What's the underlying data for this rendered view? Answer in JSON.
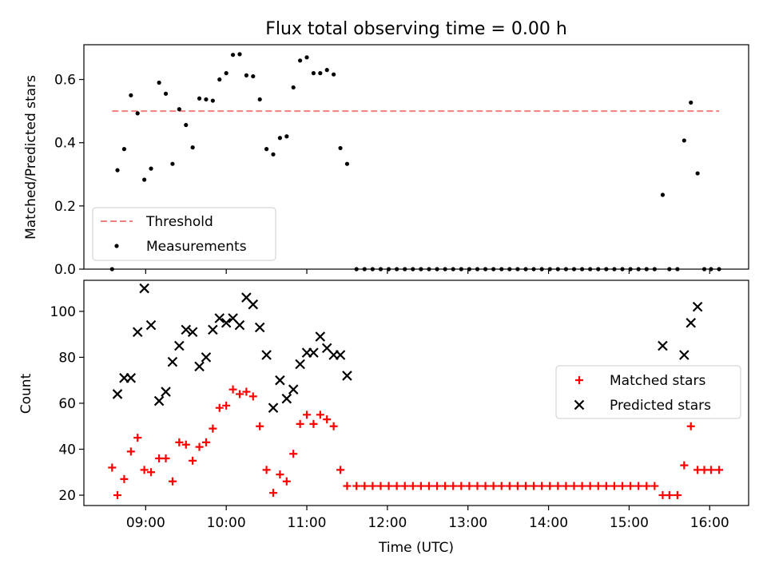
{
  "chart_data": [
    {
      "type": "scatter",
      "title": "Flux total observing time = 0.00 h",
      "xlabel": "",
      "ylabel": "Matched/Predicted stars",
      "ylim": [
        0.0,
        0.71
      ],
      "yticks": [
        "0.0",
        "0.2",
        "0.4",
        "0.6"
      ],
      "xlim": [
        "08:14",
        "16:29"
      ],
      "legend": {
        "position": "lower-left",
        "entries": [
          "Threshold",
          "Measurements"
        ]
      },
      "threshold": {
        "name": "Threshold",
        "value": 0.5,
        "x": [
          "08:35",
          "16:07"
        ],
        "color": "#f08080",
        "style": "dashed"
      },
      "series": [
        {
          "name": "Measurements",
          "color": "#000000",
          "marker": "dot",
          "points": [
            [
              "08:35",
              0.0
            ],
            [
              "08:39",
              0.313
            ],
            [
              "08:44",
              0.38
            ],
            [
              "08:49",
              0.55
            ],
            [
              "08:54",
              0.493
            ],
            [
              "08:59",
              0.283
            ],
            [
              "09:04",
              0.318
            ],
            [
              "09:10",
              0.59
            ],
            [
              "09:15",
              0.555
            ],
            [
              "09:20",
              0.333
            ],
            [
              "09:25",
              0.506
            ],
            [
              "09:30",
              0.456
            ],
            [
              "09:35",
              0.385
            ],
            [
              "09:40",
              0.54
            ],
            [
              "09:45",
              0.537
            ],
            [
              "09:50",
              0.533
            ],
            [
              "09:55",
              0.6
            ],
            [
              "10:00",
              0.62
            ],
            [
              "10:05",
              0.678
            ],
            [
              "10:10",
              0.68
            ],
            [
              "10:15",
              0.613
            ],
            [
              "10:20",
              0.61
            ],
            [
              "10:25",
              0.537
            ],
            [
              "10:30",
              0.38
            ],
            [
              "10:35",
              0.363
            ],
            [
              "10:40",
              0.415
            ],
            [
              "10:45",
              0.42
            ],
            [
              "10:50",
              0.575
            ],
            [
              "10:55",
              0.66
            ],
            [
              "11:00",
              0.67
            ],
            [
              "11:05",
              0.62
            ],
            [
              "11:10",
              0.62
            ],
            [
              "11:15",
              0.63
            ],
            [
              "11:20",
              0.616
            ],
            [
              "11:25",
              0.383
            ],
            [
              "11:30",
              0.333
            ],
            [
              "11:37",
              0.0
            ],
            [
              "11:43",
              0.0
            ],
            [
              "11:49",
              0.0
            ],
            [
              "11:55",
              0.0
            ],
            [
              "12:01",
              0.0
            ],
            [
              "12:07",
              0.0
            ],
            [
              "12:13",
              0.0
            ],
            [
              "12:19",
              0.0
            ],
            [
              "12:25",
              0.0
            ],
            [
              "12:31",
              0.0
            ],
            [
              "12:37",
              0.0
            ],
            [
              "12:43",
              0.0
            ],
            [
              "12:49",
              0.0
            ],
            [
              "12:55",
              0.0
            ],
            [
              "13:01",
              0.0
            ],
            [
              "13:07",
              0.0
            ],
            [
              "13:13",
              0.0
            ],
            [
              "13:19",
              0.0
            ],
            [
              "13:25",
              0.0
            ],
            [
              "13:31",
              0.0
            ],
            [
              "13:37",
              0.0
            ],
            [
              "13:43",
              0.0
            ],
            [
              "13:49",
              0.0
            ],
            [
              "13:55",
              0.0
            ],
            [
              "14:01",
              0.0
            ],
            [
              "14:07",
              0.0
            ],
            [
              "14:13",
              0.0
            ],
            [
              "14:19",
              0.0
            ],
            [
              "14:25",
              0.0
            ],
            [
              "14:31",
              0.0
            ],
            [
              "14:37",
              0.0
            ],
            [
              "14:43",
              0.0
            ],
            [
              "14:49",
              0.0
            ],
            [
              "14:55",
              0.0
            ],
            [
              "15:01",
              0.0
            ],
            [
              "15:07",
              0.0
            ],
            [
              "15:13",
              0.0
            ],
            [
              "15:19",
              0.0
            ],
            [
              "15:25",
              0.235
            ],
            [
              "15:30",
              0.0
            ],
            [
              "15:36",
              0.0
            ],
            [
              "15:41",
              0.407
            ],
            [
              "15:46",
              0.527
            ],
            [
              "15:51",
              0.303
            ],
            [
              "15:56",
              0.0
            ],
            [
              "16:01",
              0.0
            ],
            [
              "16:07",
              0.0
            ]
          ]
        }
      ]
    },
    {
      "type": "scatter",
      "title": "",
      "xlabel": "Time (UTC)",
      "ylabel": "Count",
      "ylim": [
        15.5,
        113.5
      ],
      "yticks": [
        "20",
        "40",
        "60",
        "80",
        "100"
      ],
      "xticks": [
        "09:00",
        "10:00",
        "11:00",
        "12:00",
        "13:00",
        "14:00",
        "15:00",
        "16:00"
      ],
      "xlim": [
        "08:14",
        "16:29"
      ],
      "legend": {
        "position": "center-right",
        "entries": [
          "Matched stars",
          "Predicted stars"
        ]
      },
      "series": [
        {
          "name": "Matched stars",
          "color": "#ff0000",
          "marker": "plus",
          "points": [
            [
              "08:35",
              32
            ],
            [
              "08:39",
              20
            ],
            [
              "08:44",
              27
            ],
            [
              "08:49",
              39
            ],
            [
              "08:54",
              45
            ],
            [
              "08:59",
              31
            ],
            [
              "09:04",
              30
            ],
            [
              "09:10",
              36
            ],
            [
              "09:15",
              36
            ],
            [
              "09:20",
              26
            ],
            [
              "09:25",
              43
            ],
            [
              "09:30",
              42
            ],
            [
              "09:35",
              35
            ],
            [
              "09:40",
              41
            ],
            [
              "09:45",
              43
            ],
            [
              "09:50",
              49
            ],
            [
              "09:55",
              58
            ],
            [
              "10:00",
              59
            ],
            [
              "10:05",
              66
            ],
            [
              "10:10",
              64
            ],
            [
              "10:15",
              65
            ],
            [
              "10:20",
              63
            ],
            [
              "10:25",
              50
            ],
            [
              "10:30",
              31
            ],
            [
              "10:35",
              21
            ],
            [
              "10:40",
              29
            ],
            [
              "10:45",
              26
            ],
            [
              "10:50",
              38
            ],
            [
              "10:55",
              51
            ],
            [
              "11:00",
              55
            ],
            [
              "11:05",
              51
            ],
            [
              "11:10",
              55
            ],
            [
              "11:15",
              53
            ],
            [
              "11:20",
              50
            ],
            [
              "11:25",
              31
            ],
            [
              "11:30",
              24
            ],
            [
              "11:37",
              24
            ],
            [
              "11:43",
              24
            ],
            [
              "11:49",
              24
            ],
            [
              "11:55",
              24
            ],
            [
              "12:01",
              24
            ],
            [
              "12:07",
              24
            ],
            [
              "12:13",
              24
            ],
            [
              "12:19",
              24
            ],
            [
              "12:25",
              24
            ],
            [
              "12:31",
              24
            ],
            [
              "12:37",
              24
            ],
            [
              "12:43",
              24
            ],
            [
              "12:49",
              24
            ],
            [
              "12:55",
              24
            ],
            [
              "13:01",
              24
            ],
            [
              "13:07",
              24
            ],
            [
              "13:13",
              24
            ],
            [
              "13:19",
              24
            ],
            [
              "13:25",
              24
            ],
            [
              "13:31",
              24
            ],
            [
              "13:37",
              24
            ],
            [
              "13:43",
              24
            ],
            [
              "13:49",
              24
            ],
            [
              "13:55",
              24
            ],
            [
              "14:01",
              24
            ],
            [
              "14:07",
              24
            ],
            [
              "14:13",
              24
            ],
            [
              "14:19",
              24
            ],
            [
              "14:25",
              24
            ],
            [
              "14:31",
              24
            ],
            [
              "14:37",
              24
            ],
            [
              "14:43",
              24
            ],
            [
              "14:49",
              24
            ],
            [
              "14:55",
              24
            ],
            [
              "15:01",
              24
            ],
            [
              "15:07",
              24
            ],
            [
              "15:13",
              24
            ],
            [
              "15:19",
              24
            ],
            [
              "15:25",
              20
            ],
            [
              "15:30",
              20
            ],
            [
              "15:36",
              20
            ],
            [
              "15:41",
              33
            ],
            [
              "15:46",
              50
            ],
            [
              "15:51",
              31
            ],
            [
              "15:56",
              31
            ],
            [
              "16:01",
              31
            ],
            [
              "16:07",
              31
            ]
          ]
        },
        {
          "name": "Predicted stars",
          "color": "#000000",
          "marker": "x",
          "points": [
            [
              "08:39",
              64
            ],
            [
              "08:44",
              71
            ],
            [
              "08:49",
              71
            ],
            [
              "08:54",
              91
            ],
            [
              "08:59",
              110
            ],
            [
              "09:04",
              94
            ],
            [
              "09:10",
              61
            ],
            [
              "09:15",
              65
            ],
            [
              "09:20",
              78
            ],
            [
              "09:25",
              85
            ],
            [
              "09:30",
              92
            ],
            [
              "09:35",
              91
            ],
            [
              "09:40",
              76
            ],
            [
              "09:45",
              80
            ],
            [
              "09:50",
              92
            ],
            [
              "09:55",
              97
            ],
            [
              "10:00",
              95
            ],
            [
              "10:05",
              97
            ],
            [
              "10:10",
              94
            ],
            [
              "10:15",
              106
            ],
            [
              "10:20",
              103
            ],
            [
              "10:25",
              93
            ],
            [
              "10:30",
              81
            ],
            [
              "10:35",
              58
            ],
            [
              "10:40",
              70
            ],
            [
              "10:45",
              62
            ],
            [
              "10:50",
              66
            ],
            [
              "10:55",
              77
            ],
            [
              "11:00",
              82
            ],
            [
              "11:05",
              82
            ],
            [
              "11:10",
              89
            ],
            [
              "11:15",
              84
            ],
            [
              "11:20",
              81
            ],
            [
              "11:25",
              81
            ],
            [
              "11:30",
              72
            ],
            [
              "15:25",
              85
            ],
            [
              "15:41",
              81
            ],
            [
              "15:46",
              95
            ],
            [
              "15:51",
              102
            ]
          ]
        }
      ]
    }
  ]
}
